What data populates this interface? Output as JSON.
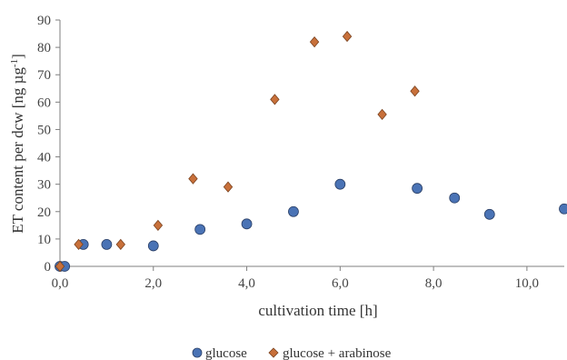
{
  "chart_data": {
    "type": "scatter",
    "title": "",
    "xlabel": "cultivation time [h]",
    "ylabel_main": "ET content per dcw [ng µg",
    "ylabel_sup": "-1",
    "ylabel_end": "]",
    "xlim": [
      0,
      10.8
    ],
    "ylim": [
      0,
      90
    ],
    "x_ticks": [
      0,
      2,
      4,
      6,
      8,
      10
    ],
    "x_tick_labels": [
      "0,0",
      "2,0",
      "4,0",
      "6,0",
      "8,0",
      "10,0"
    ],
    "y_ticks": [
      0,
      10,
      20,
      30,
      40,
      50,
      60,
      70,
      80,
      90
    ],
    "y_tick_labels": [
      "0",
      "10",
      "20",
      "30",
      "40",
      "50",
      "60",
      "70",
      "80",
      "90"
    ],
    "grid": false,
    "legend_position": "bottom",
    "series": [
      {
        "name": "glucose",
        "marker": "circle",
        "color": "#4a73b5",
        "edge_color": "#2a3f66",
        "points": [
          [
            0,
            0
          ],
          [
            0.1,
            0
          ],
          [
            0.5,
            8
          ],
          [
            1.0,
            8
          ],
          [
            2.0,
            7.5
          ],
          [
            3.0,
            13.5
          ],
          [
            4.0,
            15.5
          ],
          [
            5.0,
            20
          ],
          [
            6.0,
            30
          ],
          [
            7.65,
            28.5
          ],
          [
            8.45,
            25
          ],
          [
            9.2,
            19
          ],
          [
            10.8,
            21
          ]
        ]
      },
      {
        "name": "glucose + arabinose",
        "marker": "diamond",
        "color": "#c8703a",
        "edge_color": "#7a4320",
        "points": [
          [
            0,
            0
          ],
          [
            0.4,
            8
          ],
          [
            1.3,
            8
          ],
          [
            2.1,
            15
          ],
          [
            2.85,
            32
          ],
          [
            3.6,
            29
          ],
          [
            4.6,
            61
          ],
          [
            5.45,
            82
          ],
          [
            6.15,
            84
          ],
          [
            6.9,
            55.5
          ],
          [
            7.6,
            64
          ]
        ]
      }
    ]
  }
}
